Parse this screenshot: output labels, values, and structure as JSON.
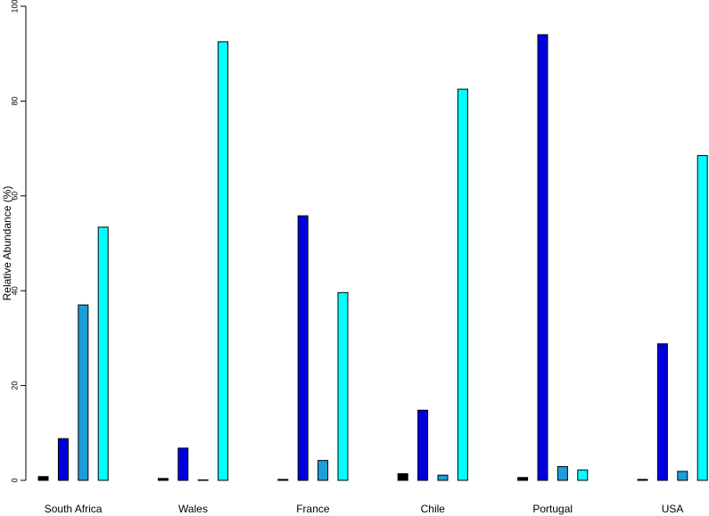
{
  "chart_data": {
    "type": "bar",
    "y_label": "Relative Abundance (%)",
    "categories": [
      "South Africa",
      "Wales",
      "France",
      "Chile",
      "Portugal",
      "USA"
    ],
    "series": [
      {
        "color": "#000000",
        "values": [
          0.8,
          0.4,
          0.2,
          1.4,
          0.6,
          0.2
        ]
      },
      {
        "color": "#0000e0",
        "values": [
          8.8,
          6.8,
          55.8,
          14.8,
          94,
          28.8
        ]
      },
      {
        "color": "#1c9ed8",
        "values": [
          37,
          0.1,
          4.2,
          1.1,
          2.9,
          1.9
        ]
      },
      {
        "color": "#00ffff",
        "values": [
          53.4,
          92.5,
          39.6,
          82.5,
          2.2,
          68.5
        ]
      }
    ],
    "ylim": [
      0,
      100
    ],
    "yticks": [
      0,
      20,
      40,
      60,
      80,
      100
    ]
  }
}
